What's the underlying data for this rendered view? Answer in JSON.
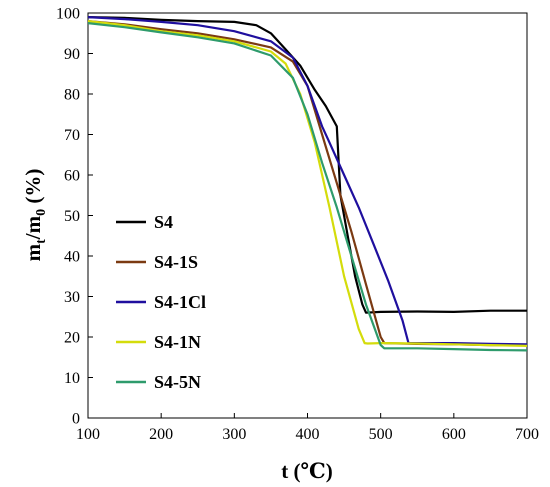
{
  "chart_data": {
    "type": "line",
    "title": "",
    "xlabel": "t (℃)",
    "ylabel_main": "m",
    "ylabel_sub1": "t",
    "ylabel_mid": "/m",
    "ylabel_sub2": "0",
    "ylabel_tail": " (%)",
    "xlim": [
      100,
      700
    ],
    "ylim": [
      0,
      100
    ],
    "xticks": [
      100,
      200,
      300,
      400,
      500,
      600,
      700
    ],
    "yticks": [
      0,
      10,
      20,
      30,
      40,
      50,
      60,
      70,
      80,
      90,
      100
    ],
    "grid": false,
    "legend_position": "left-middle",
    "series": [
      {
        "name": "S4",
        "color": "#000000",
        "x": [
          100,
          150,
          200,
          250,
          300,
          330,
          350,
          370,
          390,
          410,
          425,
          440,
          445,
          455,
          465,
          475,
          480,
          500,
          550,
          600,
          650,
          700
        ],
        "y": [
          99,
          98.8,
          98.3,
          98,
          97.8,
          97,
          95,
          91,
          87,
          81,
          77,
          72,
          55,
          45,
          35,
          28,
          26,
          26.2,
          26.3,
          26.2,
          26.5,
          26.5
        ]
      },
      {
        "name": "S4-1S",
        "color": "#7b3a12",
        "x": [
          100,
          150,
          200,
          250,
          300,
          350,
          380,
          400,
          420,
          440,
          460,
          480,
          500,
          505,
          550,
          600,
          650,
          700
        ],
        "y": [
          98,
          97.2,
          96,
          95,
          93.5,
          91.5,
          88,
          82,
          70,
          58,
          46,
          33,
          20,
          18.5,
          18.3,
          18.2,
          18,
          18
        ]
      },
      {
        "name": "S4-1Cl",
        "color": "#1f0f9e",
        "x": [
          100,
          150,
          200,
          250,
          300,
          350,
          380,
          400,
          420,
          430,
          450,
          470,
          490,
          510,
          530,
          538,
          560,
          600,
          650,
          700
        ],
        "y": [
          99,
          98.5,
          97.8,
          97,
          95.5,
          93,
          89,
          82,
          72,
          68,
          60,
          52,
          43,
          34,
          24,
          18.5,
          18.5,
          18.5,
          18.3,
          18.2
        ]
      },
      {
        "name": "S4-1N",
        "color": "#d4dc0b",
        "x": [
          100,
          150,
          200,
          250,
          300,
          350,
          370,
          390,
          410,
          430,
          450,
          470,
          478,
          482,
          500,
          550,
          600,
          650,
          700
        ],
        "y": [
          98,
          97,
          95.5,
          94.5,
          93,
          90.5,
          87.5,
          80,
          68,
          52,
          35,
          22,
          18.5,
          18.4,
          18.5,
          18.4,
          18.2,
          18,
          17.8
        ]
      },
      {
        "name": "S4-5N",
        "color": "#2e9b6c",
        "x": [
          100,
          150,
          200,
          250,
          300,
          350,
          380,
          400,
          420,
          440,
          460,
          480,
          500,
          505,
          550,
          600,
          650,
          700
        ],
        "y": [
          97.5,
          96.5,
          95.2,
          94,
          92.5,
          89.5,
          84,
          75,
          63,
          52,
          40,
          28,
          18,
          17.2,
          17.2,
          17,
          16.8,
          16.7
        ]
      }
    ]
  }
}
